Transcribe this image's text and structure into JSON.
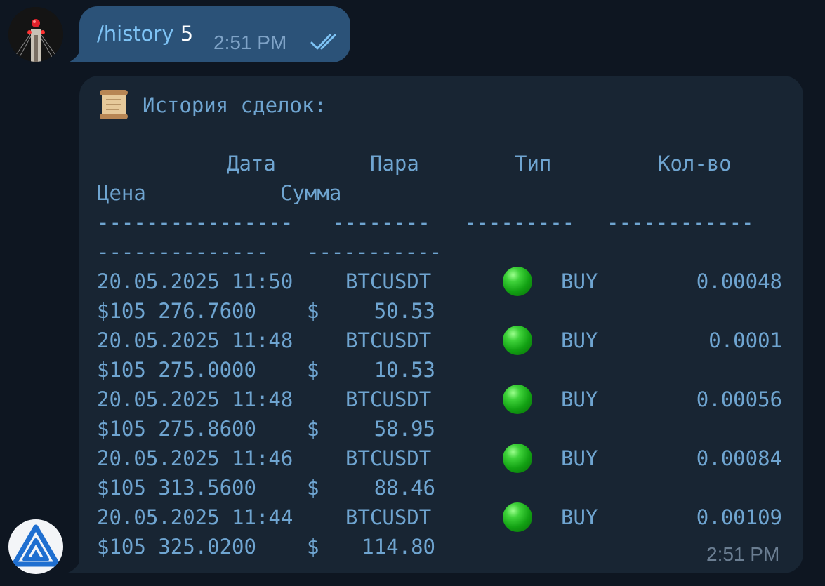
{
  "outgoing": {
    "command": "/history",
    "argument": "5",
    "time": "2:51 PM",
    "status_icon": "double-check-icon"
  },
  "incoming": {
    "header_icon": "scroll-icon",
    "title": "История сделок:",
    "columns": {
      "date": "Дата",
      "pair": "Пара",
      "type": "Тип",
      "qty": "Кол-во",
      "price": "Цена",
      "sum": "Сумма"
    },
    "separators": {
      "date": "----------------",
      "pair": "--------",
      "type": "---------",
      "qty": "------------",
      "price": "--------------",
      "sum": "-----------"
    },
    "rows": [
      {
        "date": "20.05.2025 11:50",
        "pair": "BTCUSDT",
        "type": "BUY",
        "qty": "0.00048",
        "price": "$105 276.7600",
        "currency": "$",
        "sum": "50.53"
      },
      {
        "date": "20.05.2025 11:48",
        "pair": "BTCUSDT",
        "type": "BUY",
        "qty": "0.0001",
        "price": "$105 275.0000",
        "currency": "$",
        "sum": "10.53"
      },
      {
        "date": "20.05.2025 11:48",
        "pair": "BTCUSDT",
        "type": "BUY",
        "qty": "0.00056",
        "price": "$105 275.8600",
        "currency": "$",
        "sum": "58.95"
      },
      {
        "date": "20.05.2025 11:46",
        "pair": "BTCUSDT",
        "type": "BUY",
        "qty": "0.00084",
        "price": "$105 313.5600",
        "currency": "$",
        "sum": "88.46"
      },
      {
        "date": "20.05.2025 11:44",
        "pair": "BTCUSDT",
        "type": "BUY",
        "qty": "0.00109",
        "price": "$105 325.0200",
        "currency": "$",
        "sum": "114.80"
      }
    ],
    "buy_marker_icon": "green-circle-icon",
    "buy_marker_color": "#12a113",
    "time": "2:51 PM"
  }
}
